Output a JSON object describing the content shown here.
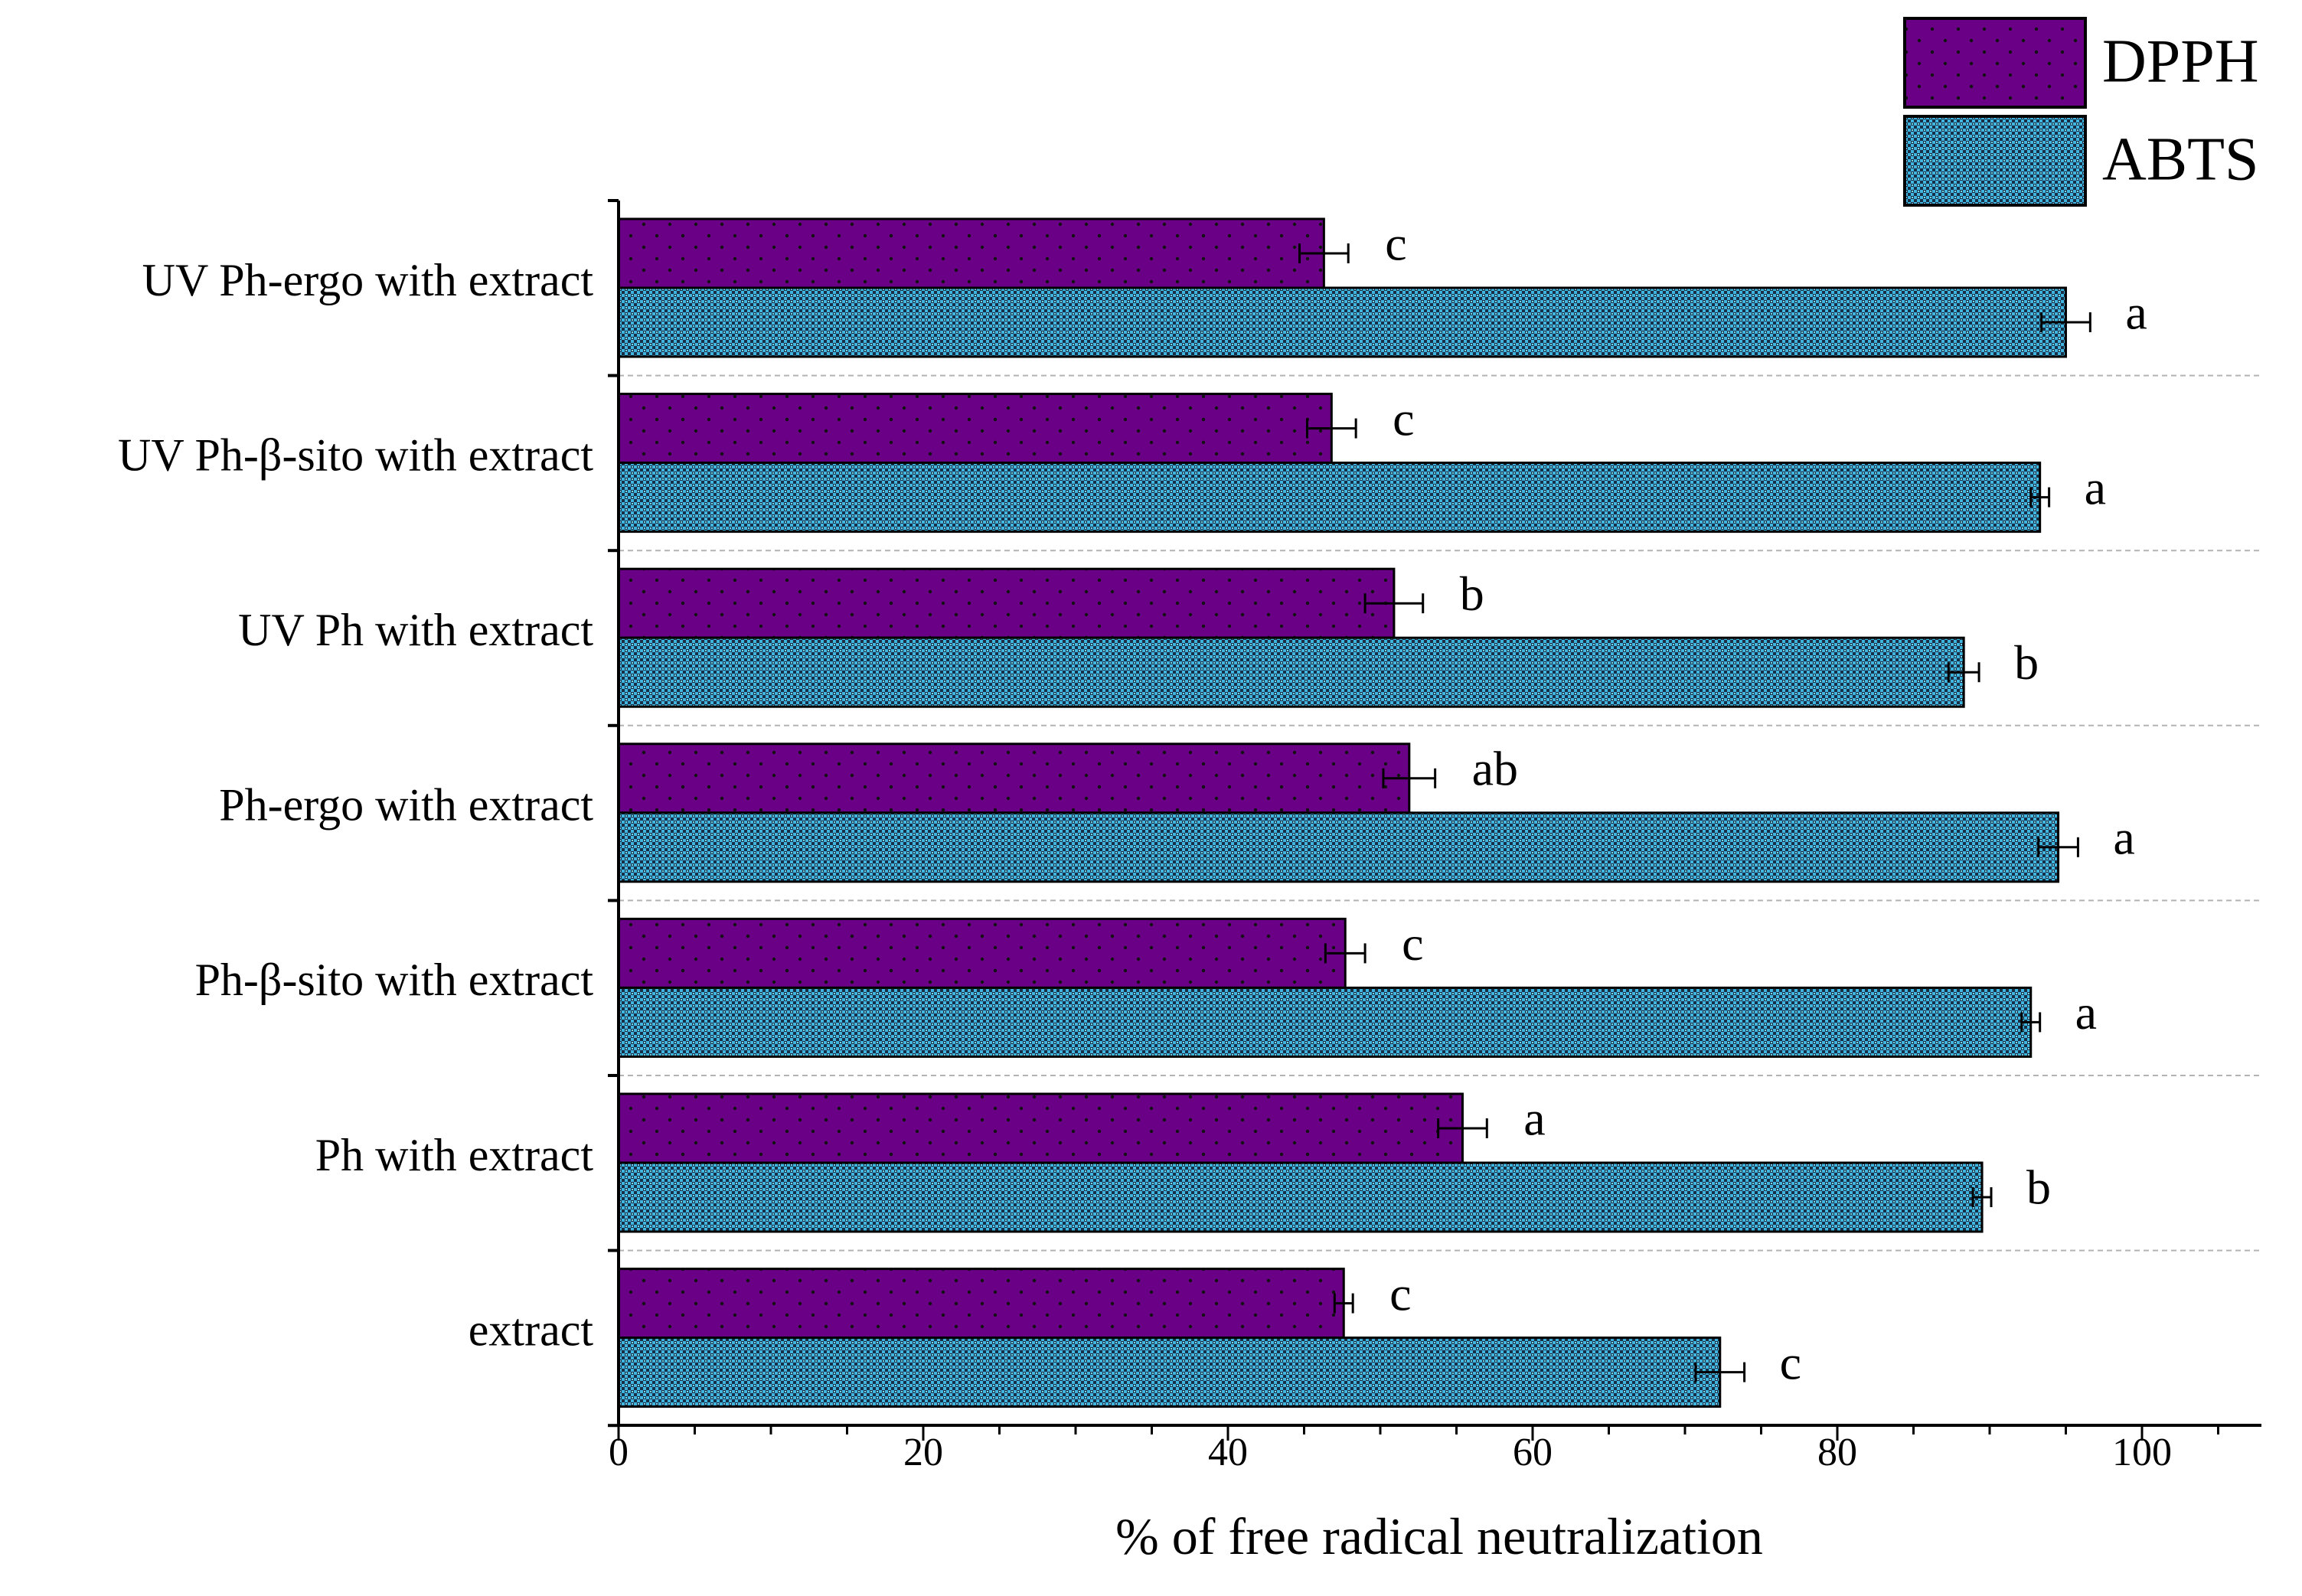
{
  "chart_data": {
    "type": "bar",
    "orientation": "horizontal",
    "xlabel": "% of free radical neutralization",
    "xlim": [
      0,
      108
    ],
    "xticks": [
      0,
      20,
      40,
      60,
      80,
      100
    ],
    "minor_tick_step": 5,
    "categories": [
      "UV Ph-ergo with extract",
      "UV Ph-β-sito with extract",
      "UV Ph with extract",
      "Ph-ergo with extract",
      "Ph-β-sito with extract",
      "Ph with extract",
      "extract"
    ],
    "series": [
      {
        "name": "DPPH",
        "color": "#6a0085",
        "pattern": "dots",
        "values": [
          46.3,
          46.8,
          50.9,
          51.9,
          47.7,
          55.4,
          47.6
        ],
        "errors": [
          1.6,
          1.6,
          1.9,
          1.7,
          1.3,
          1.6,
          0.6
        ],
        "significance": [
          "c",
          "c",
          "b",
          "ab",
          "c",
          "a",
          "c"
        ]
      },
      {
        "name": "ABTS",
        "color": "#3fb6e0",
        "pattern": "checker",
        "values": [
          95.0,
          93.3,
          88.3,
          94.5,
          92.7,
          89.5,
          72.3
        ],
        "errors": [
          1.6,
          0.6,
          1.0,
          1.3,
          0.6,
          0.6,
          1.6
        ],
        "significance": [
          "a",
          "a",
          "b",
          "a",
          "a",
          "b",
          "c"
        ]
      }
    ],
    "legend_position": "top-right"
  }
}
